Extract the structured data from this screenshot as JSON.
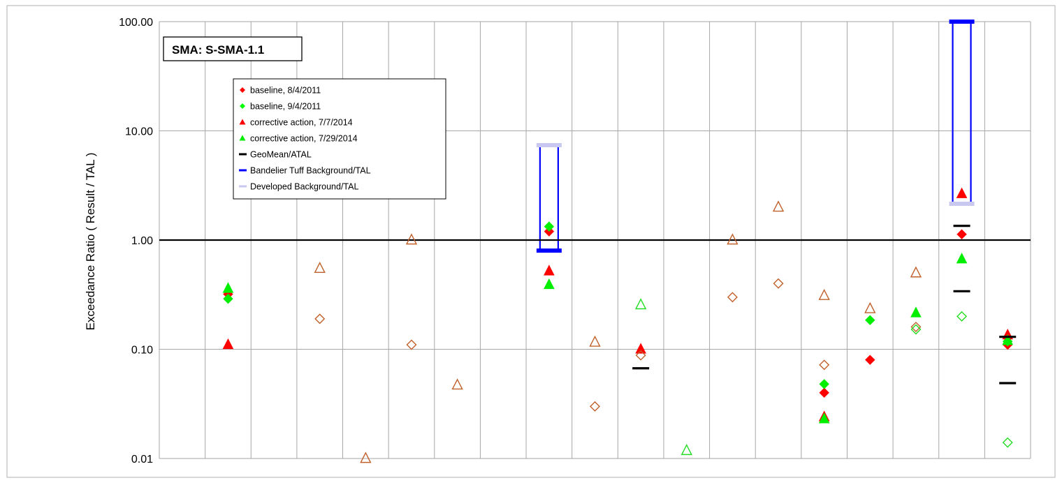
{
  "chart_data": {
    "type": "scatter",
    "title": "SMA: S-SMA-1.1",
    "ylabel": "Exceedance Ratio  ( Result / TAL )",
    "xlabel": "",
    "yscale": "log",
    "ylim": [
      0.01,
      100
    ],
    "yticks": [
      "0.01",
      "0.10",
      "1.00",
      "10.00",
      "100.00"
    ],
    "category_count": 19,
    "grid": true,
    "reference_line": 1.0,
    "legend_position": "upper-left-inside",
    "legend": [
      {
        "label": "baseline, 8/4/2011",
        "marker": "diamond",
        "color": "#ff0000"
      },
      {
        "label": "baseline, 9/4/2011",
        "marker": "diamond",
        "color": "#00ff00"
      },
      {
        "label": "corrective action, 7/7/2014",
        "marker": "triangle",
        "color": "#ff0000"
      },
      {
        "label": "corrective action, 7/29/2014",
        "marker": "triangle",
        "color": "#00ee00"
      },
      {
        "label": "GeoMean/ATAL",
        "marker": "dash",
        "color": "#000000"
      },
      {
        "label": "Bandelier Tuff Background/TAL",
        "marker": "dash",
        "color": "#0000ff"
      },
      {
        "label": "Developed Background/TAL",
        "marker": "dash",
        "color": "#c8c8f0"
      }
    ],
    "series": [
      {
        "name": "baseline, 8/4/2011",
        "marker": "diamond",
        "filled": true,
        "color": "#ff0000",
        "points": [
          {
            "x": 1,
            "y": 0.32
          },
          {
            "x": 8,
            "y": 1.2
          },
          {
            "x": 14,
            "y": 0.04
          },
          {
            "x": 15,
            "y": 0.08
          },
          {
            "x": 17,
            "y": 1.13
          },
          {
            "x": 18,
            "y": 0.11
          }
        ]
      },
      {
        "name": "baseline, 9/4/2011",
        "marker": "diamond",
        "filled": true,
        "color": "#00ee00",
        "points": [
          {
            "x": 1,
            "y": 0.29
          },
          {
            "x": 8,
            "y": 1.33
          },
          {
            "x": 14,
            "y": 0.048
          },
          {
            "x": 15,
            "y": 0.185
          },
          {
            "x": 18,
            "y": 0.118
          }
        ]
      },
      {
        "name": "corrective action, 7/7/2014",
        "marker": "triangle",
        "filled": true,
        "color": "#ff0000",
        "points": [
          {
            "x": 1,
            "y": 0.11
          },
          {
            "x": 8,
            "y": 0.52
          },
          {
            "x": 10,
            "y": 0.1
          },
          {
            "x": 14,
            "y": 0.024
          },
          {
            "x": 17,
            "y": 2.65
          },
          {
            "x": 18,
            "y": 0.135
          }
        ]
      },
      {
        "name": "corrective action, 7/29/2014",
        "marker": "triangle",
        "filled": true,
        "color": "#00ee00",
        "points": [
          {
            "x": 1,
            "y": 0.36
          },
          {
            "x": 8,
            "y": 0.39
          },
          {
            "x": 14,
            "y": 0.023
          },
          {
            "x": 16,
            "y": 0.215
          },
          {
            "x": 17,
            "y": 0.67
          },
          {
            "x": 18,
            "y": 0.12
          }
        ]
      },
      {
        "marker": "triangle",
        "filled": false,
        "color": "#c0602a",
        "points": [
          {
            "x": 3,
            "y": 0.55
          },
          {
            "x": 4,
            "y": 0.01
          },
          {
            "x": 5,
            "y": 1.0
          },
          {
            "x": 6,
            "y": 0.047
          },
          {
            "x": 9,
            "y": 0.116
          },
          {
            "x": 12,
            "y": 1.0
          },
          {
            "x": 13,
            "y": 2.0
          },
          {
            "x": 14,
            "y": 0.31
          },
          {
            "x": 15,
            "y": 0.235
          },
          {
            "x": 16,
            "y": 0.5
          }
        ]
      },
      {
        "marker": "diamond",
        "filled": false,
        "color": "#c0602a",
        "points": [
          {
            "x": 3,
            "y": 0.19
          },
          {
            "x": 5,
            "y": 0.11
          },
          {
            "x": 9,
            "y": 0.03
          },
          {
            "x": 10,
            "y": 0.088
          },
          {
            "x": 12,
            "y": 0.3
          },
          {
            "x": 13,
            "y": 0.4
          },
          {
            "x": 14,
            "y": 0.072
          },
          {
            "x": 16,
            "y": 0.16
          }
        ]
      },
      {
        "marker": "triangle",
        "filled": false,
        "color": "#22dd22",
        "points": [
          {
            "x": 10,
            "y": 0.255
          },
          {
            "x": 11,
            "y": 0.0118
          }
        ]
      },
      {
        "marker": "diamond",
        "filled": false,
        "color": "#22dd22",
        "points": [
          {
            "x": 16,
            "y": 0.152
          },
          {
            "x": 17,
            "y": 0.2
          },
          {
            "x": 18,
            "y": 0.014
          }
        ]
      },
      {
        "name": "GeoMean/ATAL",
        "marker": "dash",
        "color": "#000000",
        "points": [
          {
            "x": 10,
            "y": 0.067
          },
          {
            "x": 17,
            "y": 1.35
          },
          {
            "x": 17,
            "y": 0.34
          },
          {
            "x": 18,
            "y": 0.13
          },
          {
            "x": 18,
            "y": 0.049
          }
        ]
      }
    ],
    "background_ranges": [
      {
        "x": 8,
        "bandelier_tuff": 0.8,
        "developed": 7.4
      },
      {
        "x": 17,
        "bandelier_tuff": 100,
        "developed": 2.15
      }
    ]
  }
}
